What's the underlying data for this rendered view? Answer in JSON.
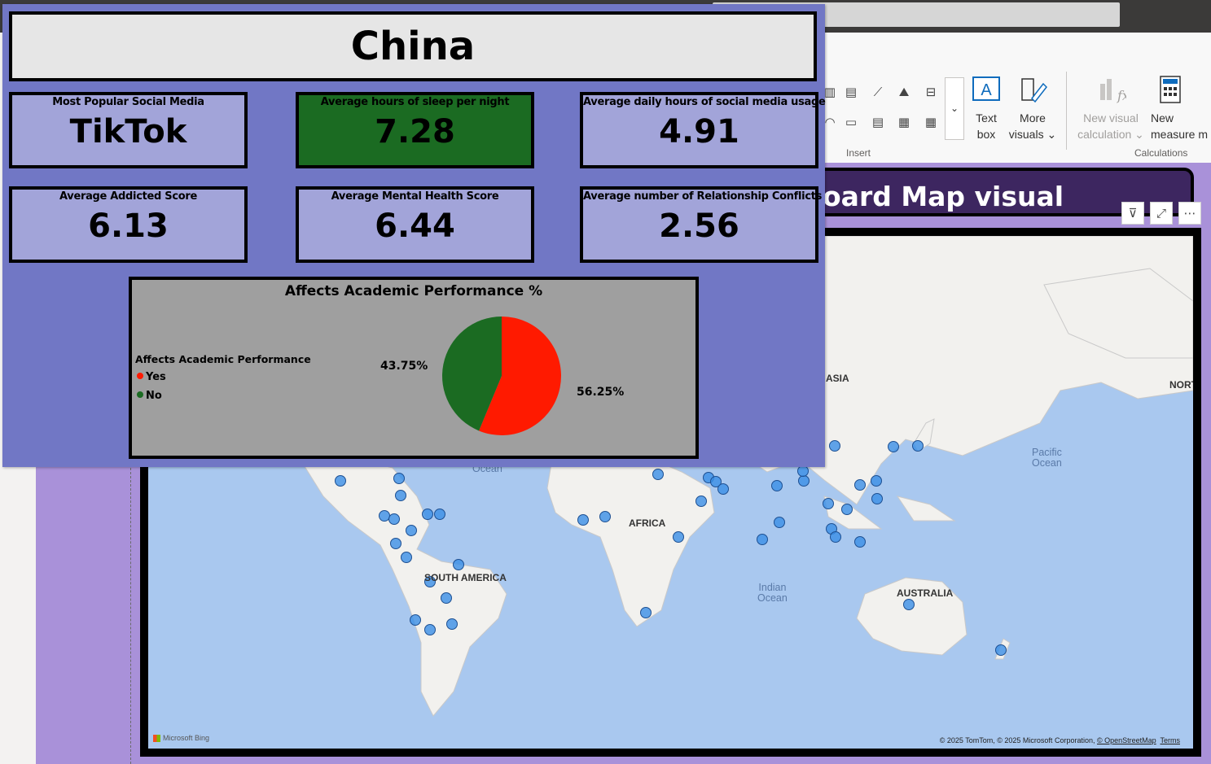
{
  "report": {
    "country": "China",
    "cards": [
      {
        "label": "Most Popular Social Media",
        "value": "TikTok"
      },
      {
        "label": "Average hours of sleep per night",
        "value": "7.28"
      },
      {
        "label": "Average daily hours of social media usage",
        "value": "4.91"
      },
      {
        "label": "Average Addicted Score",
        "value": "6.13"
      },
      {
        "label": "Average Mental Health Score",
        "value": "6.44"
      },
      {
        "label": "Average number of Relationship Conflicts",
        "value": "2.56"
      }
    ],
    "highlight_color": "#1b6b22"
  },
  "chart_data": {
    "type": "pie",
    "title": "Affects Academic Performance %",
    "legend_title": "Affects Academic Performance",
    "legend_position": "left",
    "categories": [
      "Yes",
      "No"
    ],
    "values": [
      56.25,
      43.75
    ],
    "value_labels": [
      "56.25%",
      "43.75%"
    ],
    "colors": [
      "#ff1a00",
      "#1b6b22"
    ]
  },
  "ribbon": {
    "text_box_label": "Text\nbox",
    "more_visuals_label": "More\nvisuals ⌄",
    "new_visual_calc_label": "New visual\ncalculation ⌄",
    "new_measure_label": "New\nmeasure m",
    "insert_group": "Insert",
    "calculations_group": "Calculations"
  },
  "map": {
    "title": "oard Map visual",
    "labels": [
      "ASIA",
      "AFRICA",
      "SOUTH AMERICA",
      "AUSTRALIA",
      "NORT"
    ],
    "oceans": [
      "Pacific\nOcean",
      "Indian\nOcean",
      "Ocean"
    ],
    "credit_prefix": "© 2025 TomTom, © 2025 Microsoft Corporation,",
    "credit_osm": "© OpenStreetMap",
    "credit_terms": "Terms",
    "bing": "Microsoft Bing",
    "marker_color": "#3a8ee6"
  }
}
